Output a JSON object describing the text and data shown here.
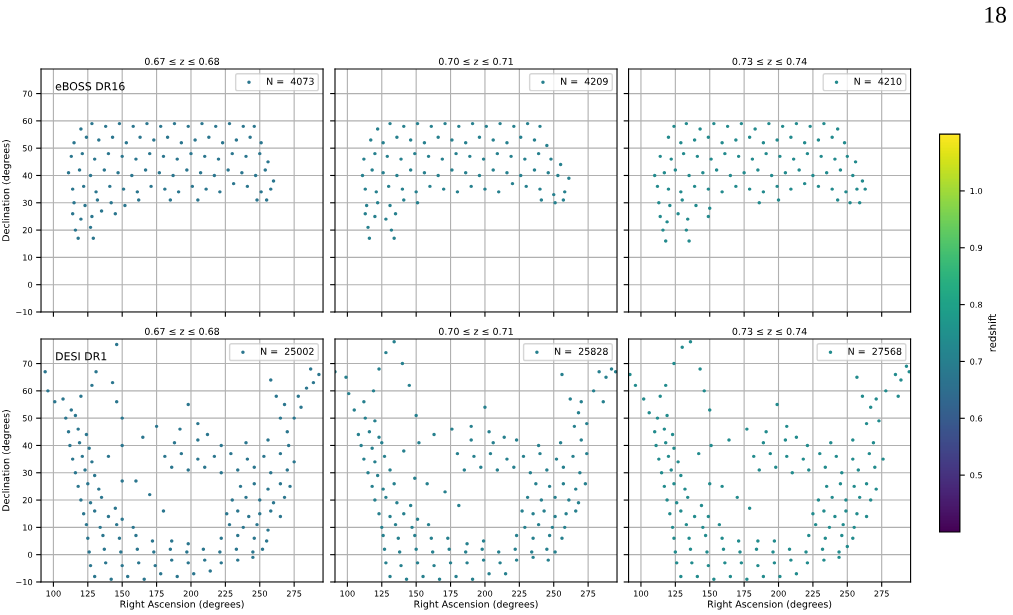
{
  "chart_data": [
    {
      "type": "scatter",
      "title": "0.67 ≤ z ≤ 0.68",
      "ylabel": "Declination (degrees)",
      "annotations": [
        "eBOSS DR16"
      ],
      "xlim": [
        91,
        296
      ],
      "ylim": [
        -10,
        79
      ],
      "xticks": [
        100,
        125,
        150,
        175,
        200,
        225,
        250,
        275
      ],
      "yticks": [
        -10,
        0,
        10,
        20,
        30,
        40,
        50,
        60,
        70
      ],
      "tick_labels": "y",
      "grid": true,
      "legend": "top right",
      "marker": "circle",
      "series": [
        {
          "name": "N =  4073",
          "color": "#2b768e",
          "x": [
            120,
            128,
            138,
            148,
            158,
            168,
            178,
            188,
            198,
            208,
            218,
            228,
            238,
            246,
            115,
            124,
            133,
            143,
            153,
            163,
            173,
            183,
            193,
            203,
            213,
            223,
            233,
            243,
            251,
            113,
            121,
            130,
            140,
            150,
            160,
            170,
            180,
            190,
            200,
            210,
            220,
            230,
            240,
            250,
            256,
            111,
            119,
            127,
            137,
            147,
            157,
            167,
            177,
            187,
            197,
            207,
            217,
            227,
            237,
            247,
            254,
            260,
            114,
            122,
            131,
            141,
            151,
            161,
            171,
            181,
            191,
            201,
            211,
            221,
            231,
            241,
            251,
            258,
            115,
            123,
            132,
            142,
            152,
            162,
            185,
            205,
            248,
            255,
            114,
            120,
            128,
            135,
            145,
            116,
            118,
            127,
            129
          ],
          "values": [
            57,
            59,
            58,
            59,
            58,
            59,
            58,
            59,
            58,
            59,
            58,
            59,
            58,
            58,
            52,
            54,
            53,
            54,
            52,
            54,
            53,
            54,
            52,
            53,
            54,
            52,
            53,
            54,
            52,
            47,
            48,
            46,
            48,
            47,
            46,
            48,
            47,
            46,
            48,
            47,
            46,
            48,
            47,
            48,
            45,
            41,
            42,
            40,
            42,
            41,
            40,
            42,
            41,
            40,
            42,
            41,
            40,
            42,
            41,
            40,
            42,
            38,
            35,
            36,
            34,
            36,
            35,
            34,
            36,
            35,
            34,
            36,
            35,
            34,
            37,
            36,
            34,
            35,
            30,
            29,
            31,
            30,
            29,
            31,
            31,
            31,
            31,
            31,
            26,
            24,
            25,
            27,
            26,
            20,
            17,
            21,
            17
          ]
        }
      ]
    },
    {
      "type": "scatter",
      "title": "0.70 ≤ z ≤ 0.71",
      "xlim": [
        91,
        296
      ],
      "ylim": [
        -10,
        79
      ],
      "xticks": [
        100,
        125,
        150,
        175,
        200,
        225,
        250,
        275
      ],
      "yticks": [
        -10,
        0,
        10,
        20,
        30,
        40,
        50,
        60,
        70
      ],
      "tick_labels": false,
      "grid": true,
      "legend": "top right",
      "marker": "circle",
      "series": [
        {
          "name": "N =  4209",
          "color": "#27808e",
          "x": [
            122,
            131,
            141,
            151,
            161,
            171,
            181,
            191,
            201,
            211,
            221,
            231,
            240,
            117,
            126,
            136,
            146,
            156,
            166,
            176,
            186,
            196,
            206,
            216,
            226,
            236,
            245,
            112,
            120,
            129,
            139,
            149,
            159,
            169,
            179,
            189,
            199,
            209,
            219,
            229,
            239,
            248,
            255,
            111,
            118,
            126,
            136,
            146,
            156,
            166,
            176,
            186,
            196,
            206,
            216,
            226,
            236,
            246,
            253,
            261,
            113,
            121,
            130,
            140,
            150,
            160,
            170,
            180,
            190,
            200,
            210,
            220,
            230,
            240,
            250,
            258,
            114,
            122,
            131,
            141,
            151,
            241,
            251,
            257,
            113,
            120,
            128,
            135,
            115,
            116,
            132,
            134
          ],
          "values": [
            57,
            59,
            58,
            59,
            58,
            59,
            58,
            59,
            58,
            59,
            58,
            59,
            58,
            53,
            52,
            54,
            53,
            52,
            54,
            53,
            52,
            54,
            53,
            52,
            54,
            53,
            51,
            46,
            48,
            47,
            46,
            48,
            47,
            46,
            48,
            47,
            46,
            48,
            47,
            46,
            48,
            46,
            44,
            40,
            42,
            41,
            40,
            42,
            41,
            40,
            42,
            41,
            40,
            42,
            41,
            40,
            42,
            41,
            40,
            39,
            35,
            34,
            36,
            35,
            34,
            36,
            35,
            34,
            36,
            35,
            34,
            37,
            36,
            35,
            33,
            34,
            29,
            30,
            29,
            31,
            30,
            31,
            30,
            31,
            26,
            25,
            24,
            26,
            21,
            17,
            20,
            17
          ]
        }
      ]
    },
    {
      "type": "scatter",
      "title": "0.73 ≤ z ≤ 0.74",
      "xlim": [
        91,
        296
      ],
      "ylim": [
        -10,
        79
      ],
      "xticks": [
        100,
        125,
        150,
        175,
        200,
        225,
        250,
        275
      ],
      "yticks": [
        -10,
        0,
        10,
        20,
        30,
        40,
        50,
        60,
        70
      ],
      "tick_labels": false,
      "grid": true,
      "legend": "top right",
      "marker": "circle",
      "series": [
        {
          "name": "N =  4210",
          "color": "#238a8d",
          "x": [
            124,
            133,
            143,
            153,
            163,
            173,
            183,
            193,
            203,
            213,
            223,
            233,
            243,
            120,
            129,
            139,
            149,
            159,
            169,
            179,
            189,
            199,
            209,
            219,
            229,
            239,
            248,
            114,
            122,
            131,
            141,
            151,
            161,
            171,
            181,
            191,
            201,
            211,
            221,
            231,
            241,
            250,
            256,
            110,
            117,
            125,
            135,
            145,
            155,
            165,
            175,
            185,
            195,
            205,
            215,
            225,
            235,
            245,
            254,
            261,
            112,
            120,
            129,
            139,
            149,
            159,
            169,
            179,
            189,
            199,
            209,
            219,
            229,
            239,
            249,
            257,
            263,
            113,
            121,
            130,
            140,
            150,
            186,
            200,
            243,
            252,
            259,
            114,
            119,
            127,
            134,
            149,
            116,
            118,
            133,
            135
          ],
          "values": [
            58,
            59,
            57,
            59,
            58,
            59,
            57,
            59,
            58,
            59,
            58,
            59,
            57,
            54,
            52,
            53,
            54,
            52,
            53,
            54,
            52,
            53,
            54,
            52,
            53,
            54,
            52,
            47,
            46,
            48,
            47,
            46,
            48,
            47,
            46,
            48,
            47,
            46,
            48,
            47,
            46,
            47,
            45,
            40,
            41,
            42,
            40,
            41,
            42,
            40,
            41,
            42,
            40,
            41,
            42,
            40,
            41,
            42,
            40,
            38,
            36,
            35,
            34,
            36,
            35,
            34,
            36,
            35,
            34,
            36,
            35,
            37,
            36,
            35,
            34,
            35,
            35,
            30,
            29,
            31,
            29,
            28,
            30,
            31,
            31,
            30,
            30,
            25,
            23,
            26,
            24,
            25,
            20,
            16,
            20,
            16
          ]
        }
      ]
    },
    {
      "type": "scatter",
      "title": "0.67 ≤ z ≤ 0.68",
      "xlabel": "Right Ascension (degrees)",
      "ylabel": "Declination (degrees)",
      "annotations": [
        "DESI DR1"
      ],
      "xlim": [
        91,
        296
      ],
      "ylim": [
        -10,
        79
      ],
      "xticks": [
        100,
        125,
        150,
        175,
        200,
        225,
        250,
        275
      ],
      "yticks": [
        -10,
        0,
        10,
        20,
        30,
        40,
        50,
        60,
        70
      ],
      "grid": true,
      "legend": "top right",
      "marker": "circle",
      "series": [
        {
          "name": "N =  25002",
          "color": "#2b768e",
          "x": [
            130,
            142,
            154,
            166,
            178,
            190,
            202,
            214,
            127,
            138,
            150,
            162,
            174,
            186,
            198,
            210,
            222,
            234,
            245,
            126,
            137,
            149,
            161,
            173,
            185,
            197,
            209,
            221,
            233,
            245,
            252,
            125,
            136,
            148,
            160,
            172,
            186,
            198,
            222,
            234,
            246,
            255,
            124,
            134,
            146,
            158,
            228,
            238,
            248,
            256,
            122,
            130,
            140,
            150,
            120,
            127,
            135,
            145,
            118,
            125,
            133,
            116,
            123,
            130,
            114,
            121,
            128,
            112,
            119,
            126,
            111,
            118,
            124,
            109,
            116,
            226,
            234,
            242,
            250,
            258,
            265,
            230,
            240,
            250,
            260,
            268,
            236,
            246,
            256,
            265,
            272,
            186,
            198,
            210,
            222,
            234,
            246,
            258,
            270,
            181,
            193,
            205,
            217,
            229,
            241,
            253,
            265,
            275,
            188,
            205,
            222,
            240,
            256,
            271,
            150,
            165,
            175,
            192,
            205,
            198,
            212,
            160,
            170,
            180,
            150,
            140,
            94,
            96,
            101,
            107,
            113,
            120,
            128,
            131,
            146,
            143,
            146,
            150,
            258,
            262,
            268,
            275,
            270,
            265,
            278,
            284,
            289,
            293,
            287,
            280
          ],
          "values": [
            -8,
            -9,
            -8,
            -9,
            -7,
            -8,
            -7,
            -6,
            -4,
            -3,
            -4,
            -3,
            -4,
            -2,
            -3,
            -2,
            -3,
            -2,
            -1,
            1,
            2,
            1,
            2,
            1,
            2,
            1,
            2,
            1,
            2,
            1,
            2,
            6,
            7,
            6,
            7,
            5,
            5,
            4,
            6,
            7,
            6,
            5,
            11,
            10,
            11,
            10,
            11,
            10,
            11,
            9,
            15,
            16,
            14,
            13,
            20,
            19,
            21,
            17,
            25,
            26,
            24,
            30,
            31,
            29,
            35,
            36,
            34,
            40,
            41,
            39,
            45,
            46,
            44,
            50,
            51,
            15,
            16,
            14,
            15,
            16,
            14,
            20,
            21,
            20,
            19,
            21,
            25,
            26,
            24,
            26,
            25,
            32,
            31,
            32,
            30,
            31,
            32,
            30,
            31,
            36,
            37,
            35,
            36,
            37,
            35,
            36,
            37,
            34,
            41,
            42,
            40,
            41,
            42,
            40,
            40,
            43,
            47,
            46,
            48,
            55,
            44,
            27,
            22,
            16,
            27,
            36,
            67,
            60,
            56,
            57,
            53,
            58,
            62,
            67,
            77,
            63,
            56,
            50,
            64,
            58,
            55,
            50,
            45,
            50,
            58,
            61,
            63,
            66,
            68,
            54
          ]
        }
      ]
    },
    {
      "type": "scatter",
      "title": "0.70 ≤ z ≤ 0.71",
      "xlabel": "Right Ascension (degrees)",
      "xlim": [
        91,
        296
      ],
      "ylim": [
        -10,
        79
      ],
      "xticks": [
        100,
        125,
        150,
        175,
        200,
        225,
        250,
        275
      ],
      "yticks": [
        -10,
        0,
        10,
        20,
        30,
        40,
        50,
        60,
        70
      ],
      "tick_labels": "x",
      "grid": true,
      "legend": "top right",
      "marker": "circle",
      "series": [
        {
          "name": "N =  25828",
          "color": "#27808e",
          "x": [
            131,
            143,
            155,
            167,
            179,
            191,
            203,
            215,
            128,
            139,
            151,
            163,
            175,
            187,
            199,
            211,
            223,
            235,
            246,
            127,
            138,
            150,
            162,
            174,
            186,
            198,
            210,
            222,
            234,
            245,
            251,
            126,
            137,
            149,
            161,
            173,
            187,
            199,
            223,
            235,
            247,
            256,
            125,
            135,
            147,
            159,
            229,
            239,
            249,
            258,
            123,
            131,
            141,
            151,
            120,
            128,
            136,
            146,
            118,
            126,
            134,
            115,
            122,
            131,
            112,
            120,
            127,
            110,
            118,
            125,
            108,
            116,
            123,
            113,
            120,
            227,
            235,
            243,
            251,
            259,
            266,
            231,
            241,
            251,
            261,
            268,
            237,
            247,
            257,
            266,
            273,
            185,
            197,
            209,
            221,
            233,
            245,
            257,
            269,
            180,
            192,
            204,
            216,
            228,
            240,
            252,
            264,
            274,
            190,
            206,
            223,
            239,
            255,
            270,
            152,
            163,
            176,
            190,
            203,
            200,
            214,
            158,
            171,
            181,
            149,
            141,
            91,
            99,
            101,
            105,
            112,
            119,
            123,
            128,
            134,
            140,
            145,
            150,
            256,
            262,
            268,
            274,
            270,
            265,
            279,
            283,
            288,
            292,
            295,
            286
          ],
          "values": [
            -8,
            -9,
            -8,
            -9,
            -8,
            -9,
            -7,
            -7,
            -3,
            -4,
            -3,
            -4,
            -3,
            -3,
            -2,
            -3,
            -2,
            -1,
            -2,
            2,
            1,
            2,
            1,
            2,
            1,
            2,
            1,
            2,
            1,
            2,
            1,
            7,
            6,
            7,
            6,
            6,
            4,
            5,
            7,
            6,
            7,
            6,
            10,
            11,
            10,
            11,
            10,
            11,
            10,
            10,
            15,
            14,
            15,
            13,
            20,
            21,
            19,
            18,
            25,
            24,
            26,
            30,
            29,
            31,
            35,
            34,
            36,
            40,
            39,
            41,
            44,
            45,
            43,
            50,
            49,
            16,
            15,
            16,
            14,
            15,
            16,
            21,
            20,
            21,
            20,
            19,
            26,
            25,
            26,
            24,
            26,
            31,
            32,
            31,
            32,
            30,
            31,
            32,
            30,
            37,
            36,
            37,
            35,
            36,
            37,
            35,
            36,
            37,
            42,
            41,
            42,
            40,
            41,
            42,
            41,
            44,
            46,
            47,
            45,
            54,
            43,
            26,
            23,
            18,
            28,
            38,
            67,
            65,
            59,
            53,
            56,
            60,
            68,
            74,
            78,
            70,
            62,
            51,
            66,
            57,
            52,
            48,
            56,
            47,
            60,
            67,
            65,
            68,
            67,
            56
          ]
        }
      ]
    },
    {
      "type": "scatter",
      "title": "0.73 ≤ z ≤ 0.74",
      "xlabel": "Right Ascension (degrees)",
      "xlim": [
        91,
        296
      ],
      "ylim": [
        -10,
        79
      ],
      "xticks": [
        100,
        125,
        150,
        175,
        200,
        225,
        250,
        275
      ],
      "yticks": [
        -10,
        0,
        10,
        20,
        30,
        40,
        50,
        60,
        70
      ],
      "tick_labels": "x",
      "grid": true,
      "legend": "top right",
      "marker": "circle",
      "clim": [
        0.4,
        1.1
      ],
      "clabel": "redshift",
      "cticks": [
        0.5,
        0.6,
        0.7,
        0.8,
        0.9,
        {
          "value": 1,
          "label": "1.0"
        }
      ],
      "series": [
        {
          "name": "N =  27568",
          "x": [
            129,
            141,
            153,
            165,
            177,
            189,
            201,
            213,
            126,
            137,
            149,
            161,
            173,
            185,
            197,
            209,
            221,
            233,
            244,
            125,
            136,
            148,
            160,
            172,
            184,
            196,
            208,
            220,
            232,
            244,
            250,
            124,
            135,
            147,
            159,
            171,
            185,
            197,
            222,
            234,
            246,
            254,
            123,
            133,
            145,
            157,
            227,
            237,
            247,
            255,
            121,
            129,
            139,
            149,
            119,
            126,
            134,
            144,
            117,
            124,
            132,
            115,
            122,
            129,
            113,
            120,
            127,
            111,
            118,
            124,
            110,
            117,
            123,
            112,
            119,
            225,
            233,
            241,
            249,
            257,
            264,
            229,
            239,
            249,
            259,
            267,
            235,
            245,
            255,
            264,
            271,
            186,
            198,
            210,
            222,
            234,
            246,
            258,
            270,
            182,
            194,
            206,
            218,
            230,
            242,
            254,
            266,
            276,
            189,
            205,
            221,
            238,
            254,
            269,
            151,
            164,
            177,
            191,
            206,
            199,
            213,
            159,
            170,
            179,
            150,
            142,
            92,
            96,
            102,
            106,
            114,
            118,
            124,
            130,
            136,
            143,
            146,
            150,
            257,
            261,
            267,
            273,
            271,
            264,
            278,
            285,
            289,
            293,
            295,
            287
          ],
          "values": [
            -8,
            -8,
            -9,
            -8,
            -9,
            -8,
            -8,
            -7,
            -3,
            -3,
            -4,
            -3,
            -3,
            -4,
            -3,
            -2,
            -3,
            -2,
            -1,
            1,
            2,
            1,
            2,
            1,
            2,
            1,
            2,
            1,
            2,
            1,
            3,
            6,
            6,
            7,
            6,
            5,
            5,
            5,
            7,
            6,
            7,
            6,
            10,
            11,
            10,
            11,
            11,
            10,
            11,
            10,
            15,
            16,
            14,
            14,
            20,
            19,
            21,
            18,
            25,
            26,
            24,
            30,
            31,
            29,
            35,
            36,
            34,
            40,
            41,
            39,
            45,
            46,
            44,
            50,
            51,
            15,
            16,
            14,
            16,
            15,
            14,
            20,
            21,
            20,
            21,
            20,
            25,
            26,
            25,
            26,
            24,
            31,
            32,
            30,
            31,
            32,
            30,
            31,
            32,
            36,
            37,
            36,
            35,
            37,
            36,
            35,
            37,
            35,
            41,
            42,
            40,
            41,
            42,
            41,
            40,
            42,
            46,
            45,
            47,
            55,
            43,
            25,
            21,
            17,
            26,
            37,
            66,
            62,
            57,
            52,
            58,
            62,
            70,
            76,
            78,
            68,
            60,
            53,
            65,
            58,
            54,
            49,
            57,
            48,
            60,
            66,
            64,
            69,
            67,
            58
          ],
          "cvalues": [
            0.735,
            0.735,
            0.735,
            0.735,
            0.735,
            0.735,
            0.735,
            0.735,
            0.735,
            0.735,
            0.735,
            0.735,
            0.735,
            0.735,
            0.735,
            0.735,
            0.735,
            0.735,
            0.735,
            0.735,
            0.735,
            0.735,
            0.735,
            0.735,
            0.735,
            0.735,
            0.735,
            0.735,
            0.735,
            0.735,
            0.735,
            0.735,
            0.735,
            0.735,
            0.735,
            0.735,
            0.735,
            0.735,
            0.735,
            0.735,
            0.735,
            0.735,
            0.735,
            0.735,
            0.735,
            0.735,
            0.735,
            0.735,
            0.735,
            0.735,
            0.735,
            0.735,
            0.735,
            0.735,
            0.735,
            0.735,
            0.735,
            0.735,
            0.735,
            0.735,
            0.735,
            0.735,
            0.735,
            0.735,
            0.735,
            0.735,
            0.735,
            0.735,
            0.735,
            0.735,
            0.735,
            0.735,
            0.735,
            0.735,
            0.735,
            0.735,
            0.735,
            0.735,
            0.735,
            0.735,
            0.735,
            0.735,
            0.735,
            0.735,
            0.735,
            0.735,
            0.735,
            0.735,
            0.735,
            0.735,
            0.735,
            0.735,
            0.735,
            0.735,
            0.735,
            0.735,
            0.735,
            0.735,
            0.735,
            0.735,
            0.735,
            0.735,
            0.735,
            0.735,
            0.735,
            0.735,
            0.735,
            0.735,
            0.735,
            0.735,
            0.735,
            0.735,
            0.735,
            0.735,
            0.735,
            0.735,
            0.735,
            0.735,
            0.735,
            0.735,
            0.735,
            0.735,
            0.735,
            0.735,
            0.735,
            0.735,
            0.735,
            0.735,
            0.735,
            0.735,
            0.735,
            0.735,
            0.735,
            0.735,
            0.735,
            0.735,
            0.735,
            0.735,
            0.735,
            0.735,
            0.735,
            0.735,
            0.735,
            0.735,
            0.735,
            0.735,
            0.735,
            0.735,
            0.735,
            0.735
          ]
        }
      ]
    },
    {
      "type": "other",
      "annotations": [
        "18"
      ]
    }
  ]
}
